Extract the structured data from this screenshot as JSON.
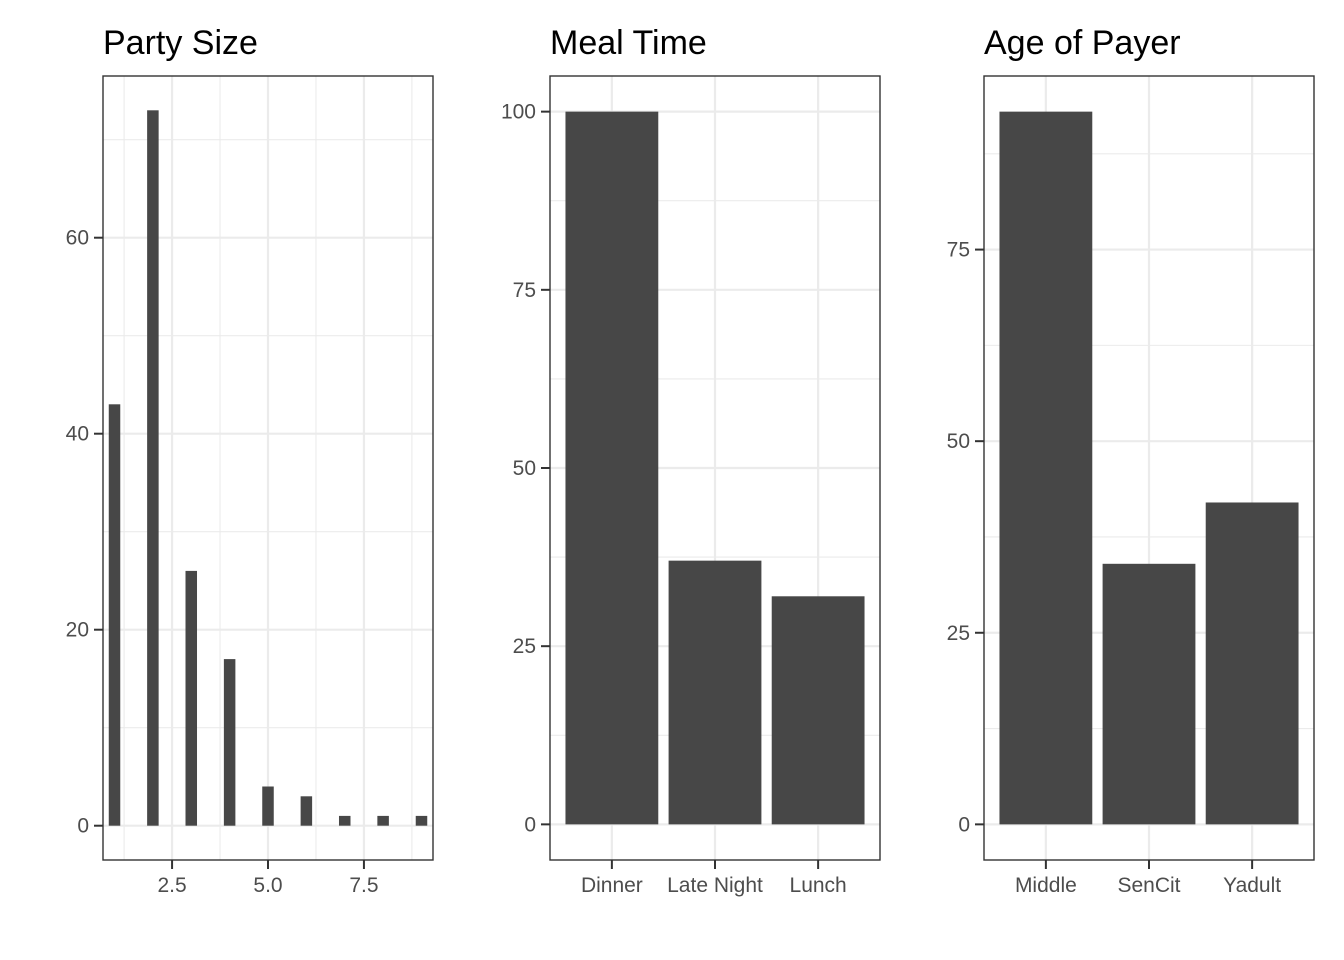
{
  "colors": {
    "bar": "#474747",
    "grid": "#ebebeb",
    "border": "#333333",
    "tick_text": "#4d4d4d"
  },
  "chart_data": [
    {
      "type": "bar",
      "title": "Party Size",
      "xlabel": "",
      "ylabel": "",
      "x": [
        1,
        2,
        3,
        4,
        5,
        6,
        7,
        8,
        9
      ],
      "values": [
        43,
        73,
        26,
        17,
        4,
        3,
        1,
        1,
        1
      ],
      "xlim": [
        0.7,
        9.3
      ],
      "ylim": [
        -3.5,
        76.5
      ],
      "x_ticks": [
        2.5,
        5.0,
        7.5
      ],
      "x_tick_labels": [
        "2.5",
        "5.0",
        "7.5"
      ],
      "y_ticks": [
        0,
        20,
        40,
        60
      ],
      "y_tick_labels": [
        "0",
        "20",
        "40",
        "60"
      ],
      "grid": true,
      "legend": "none"
    },
    {
      "type": "bar",
      "title": "Meal Time",
      "xlabel": "",
      "ylabel": "",
      "categories": [
        "Dinner",
        "Late Night",
        "Lunch"
      ],
      "values": [
        100,
        37,
        32
      ],
      "ylim": [
        -5,
        105
      ],
      "y_ticks": [
        0,
        25,
        50,
        75,
        100
      ],
      "y_tick_labels": [
        "0",
        "25",
        "50",
        "75",
        "100"
      ],
      "grid": true,
      "legend": "none"
    },
    {
      "type": "bar",
      "title": "Age of Payer",
      "xlabel": "",
      "ylabel": "",
      "categories": [
        "Middle",
        "SenCit",
        "Yadult"
      ],
      "values": [
        93,
        34,
        42
      ],
      "ylim": [
        -4.65,
        97.65
      ],
      "y_ticks": [
        0,
        25,
        50,
        75
      ],
      "y_tick_labels": [
        "0",
        "25",
        "50",
        "75"
      ],
      "grid": true,
      "legend": "none"
    }
  ]
}
